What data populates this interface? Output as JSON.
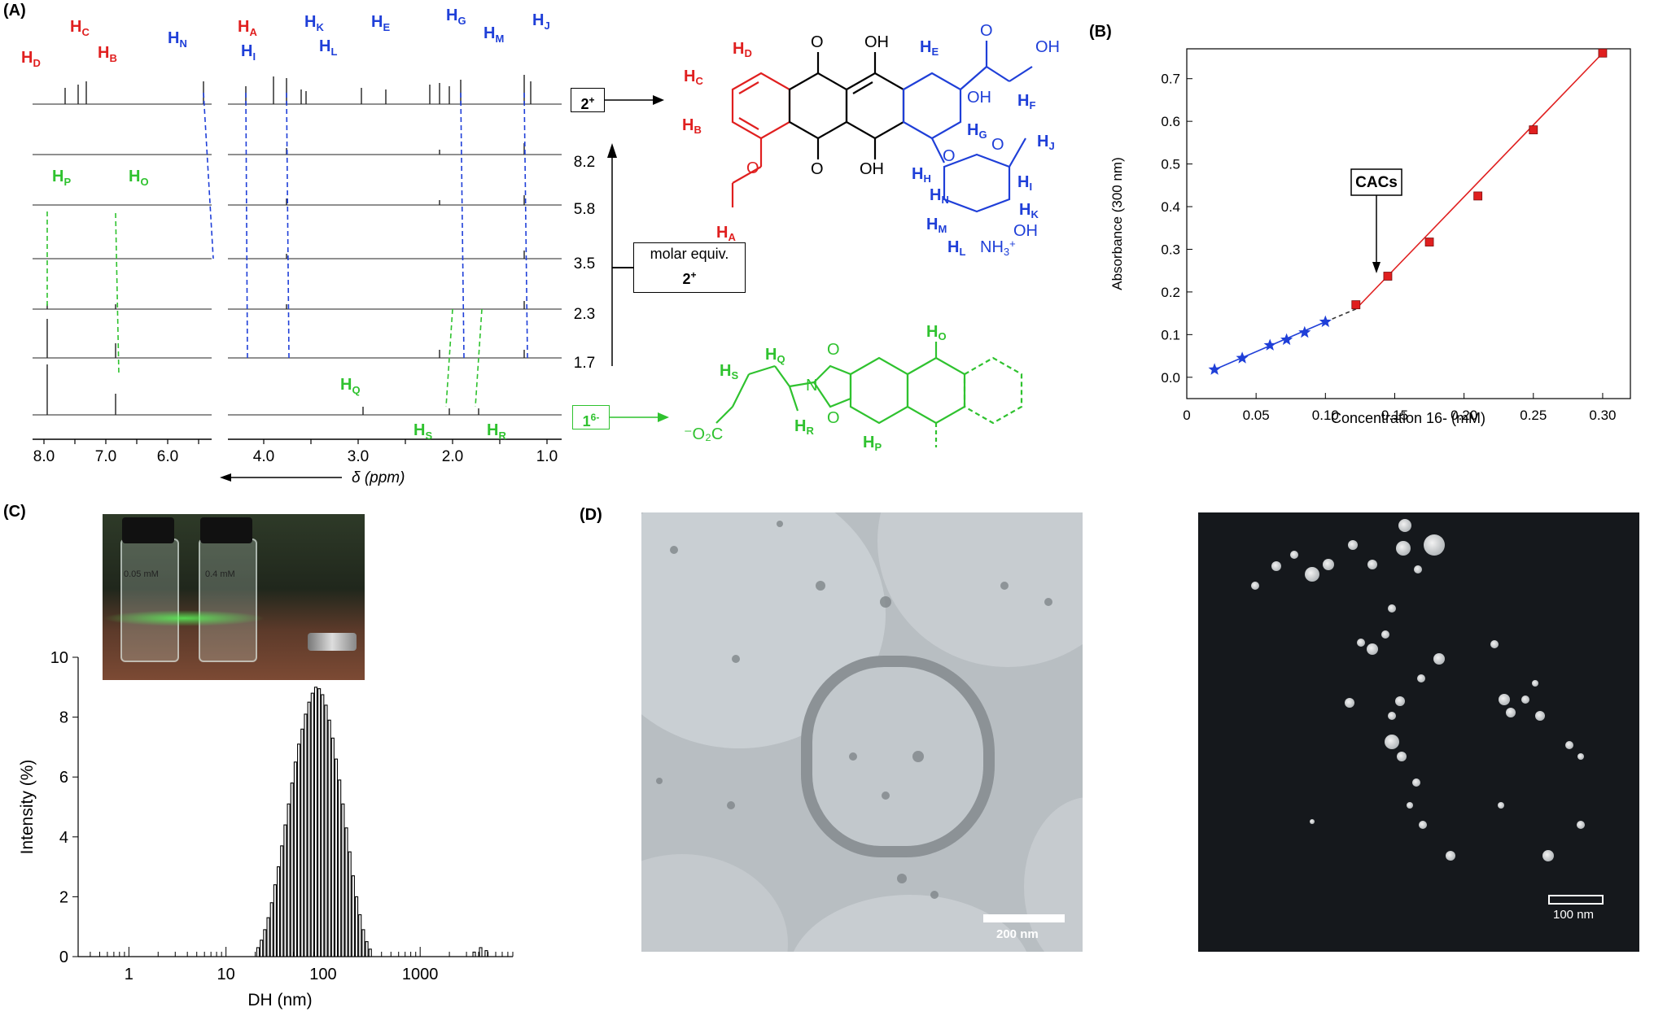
{
  "panels": {
    "a": "(A)",
    "b": "(B)",
    "c": "(C)",
    "d": "(D)"
  },
  "nmr": {
    "axis_title": "δ (ppm)",
    "ticks_left": [
      "8.0",
      "7.0",
      "6.0"
    ],
    "ticks_right": [
      "4.0",
      "3.0",
      "2.0",
      "1.0"
    ],
    "equiv_labels": [
      "8.2",
      "5.8",
      "3.5",
      "2.3",
      "1.7"
    ],
    "molar_equiv_label": "molar equiv.",
    "molar_equiv_species": "2+",
    "species_top": "2+",
    "species_bottom": "16-",
    "proton_labels_red": [
      "HD",
      "HC",
      "HB",
      "HA"
    ],
    "proton_labels_blue": [
      "HN",
      "HI",
      "HK",
      "HL",
      "HE",
      "HG",
      "HM",
      "HJ"
    ],
    "proton_labels_green": [
      "HP",
      "HO",
      "HQ",
      "HS",
      "HR"
    ],
    "colors": {
      "red": "#e01f1f",
      "blue": "#1f3fd8",
      "green": "#2fc22f"
    }
  },
  "structure_2": {
    "labels": [
      "HD",
      "HC",
      "HB",
      "HA",
      "OH",
      "O",
      "HE",
      "HF",
      "OH",
      "OH",
      "HG",
      "HJ",
      "HH",
      "HN",
      "HI",
      "HK",
      "HM",
      "HL",
      "NH3+",
      "OH",
      "O",
      "O",
      "O",
      "O",
      "O"
    ]
  },
  "structure_1": {
    "labels": [
      "HO",
      "HQ",
      "HS",
      "-O2C",
      "HR",
      "HP",
      "O",
      "O",
      "N"
    ]
  },
  "chart_data": [
    {
      "type": "scatter",
      "xlabel": "Concentration 16- (mM)",
      "ylabel": "Absorbance (300 nm)",
      "xlim": [
        0,
        0.32
      ],
      "ylim": [
        -0.05,
        0.77
      ],
      "xticks": [
        "0",
        "0.05",
        "0.10",
        "0.15",
        "0.20",
        "0.25",
        "0.30"
      ],
      "yticks": [
        "0.0",
        "0.1",
        "0.2",
        "0.3",
        "0.4",
        "0.5",
        "0.6",
        "0.7"
      ],
      "annotation": "CACs",
      "series": [
        {
          "marker": "star",
          "color": "#1f3fd8",
          "x": [
            0.02,
            0.04,
            0.06,
            0.072,
            0.085,
            0.1
          ],
          "y": [
            0.018,
            0.045,
            0.075,
            0.088,
            0.105,
            0.13
          ]
        },
        {
          "marker": "square",
          "color": "#e01f1f",
          "x": [
            0.122,
            0.145,
            0.175,
            0.21,
            0.25,
            0.3
          ],
          "y": [
            0.17,
            0.237,
            0.317,
            0.425,
            0.58,
            0.76
          ]
        }
      ],
      "fit_lines": [
        {
          "color": "#1f3fd8",
          "x": [
            0.02,
            0.1
          ],
          "y": [
            0.018,
            0.13
          ]
        },
        {
          "color": "#333333",
          "dashed": true,
          "x": [
            0.1,
            0.122
          ],
          "y": [
            0.13,
            0.16
          ]
        },
        {
          "color": "#e01f1f",
          "x": [
            0.122,
            0.3
          ],
          "y": [
            0.16,
            0.76
          ]
        }
      ]
    },
    {
      "type": "bar",
      "xlabel": "DH (nm)",
      "ylabel": "Intensity (%)",
      "xscale": "log",
      "xlim": [
        0.3,
        9000
      ],
      "ylim": [
        0,
        10
      ],
      "xticks": [
        "1",
        "10",
        "100",
        "1000"
      ],
      "yticks": [
        "0",
        "2",
        "4",
        "6",
        "8",
        "10"
      ],
      "histogram": {
        "bins_log_start": 1.33,
        "bin_log_step": 0.035,
        "values": [
          0.3,
          0.55,
          0.9,
          1.3,
          1.8,
          2.4,
          3.0,
          3.7,
          4.4,
          5.1,
          5.8,
          6.5,
          7.1,
          7.6,
          8.1,
          8.5,
          8.8,
          9.0,
          8.95,
          8.75,
          8.4,
          7.9,
          7.3,
          6.6,
          5.9,
          5.1,
          4.3,
          3.5,
          2.7,
          2.0,
          1.4,
          0.9,
          0.5,
          0.25
        ],
        "tail_x": [
          3600,
          4200,
          4800
        ],
        "tail_y": [
          0.15,
          0.3,
          0.2
        ]
      }
    }
  ],
  "photo": {
    "vial1_label": "0.05 mM",
    "vial2_label": "0.4 mM"
  },
  "micrographs": {
    "tem_scale": "200 nm",
    "stem_scale": "100 nm"
  }
}
